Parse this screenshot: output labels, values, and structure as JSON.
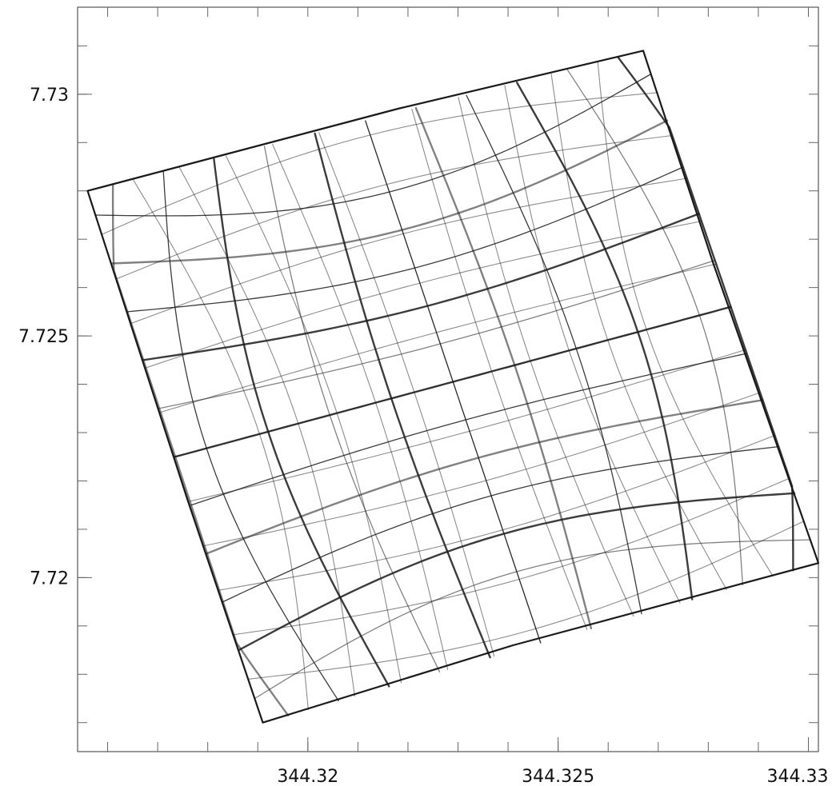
{
  "chart_data": {
    "type": "line",
    "title": "",
    "xlabel": "",
    "ylabel": "",
    "xlim": [
      344.3154,
      344.3302
    ],
    "ylim": [
      7.7164,
      7.7318
    ],
    "x_ticks": [
      {
        "value": 344.32,
        "label": "344.32"
      },
      {
        "value": 344.325,
        "label": "344.325"
      },
      {
        "value": 344.33,
        "label": "344.33"
      }
    ],
    "y_ticks": [
      {
        "value": 7.73,
        "label": "7.73"
      },
      {
        "value": 7.725,
        "label": "7.725"
      },
      {
        "value": 7.72,
        "label": "7.72"
      }
    ],
    "x_minor_step": 0.001,
    "y_minor_step": 0.001,
    "grid": false,
    "legend": "none",
    "line_color": "#1a1a1a",
    "series": [
      {
        "description_free": true,
        "points": [
          {
            "x": 344.3156,
            "y": 7.728
          },
          {
            "x": 344.3218,
            "y": 7.7297
          },
          {
            "x": 344.3267,
            "y": 7.7309
          },
          {
            "x": 344.3281,
            "y": 7.7265
          },
          {
            "x": 344.3302,
            "y": 7.7203
          },
          {
            "x": 344.3241,
            "y": 7.7186
          },
          {
            "x": 344.3191,
            "y": 7.717
          },
          {
            "x": 344.3176,
            "y": 7.7216
          },
          {
            "x": 344.3156,
            "y": 7.728
          }
        ]
      }
    ],
    "curve_family": {
      "center": [
        344.3229,
        7.7239
      ],
      "corners": [
        {
          "x": 344.3156,
          "y": 7.728
        },
        {
          "x": 344.3267,
          "y": 7.7309
        },
        {
          "x": 344.3302,
          "y": 7.7203
        },
        {
          "x": 344.3191,
          "y": 7.717
        }
      ],
      "family_a_count": 11,
      "family_b_count": 11
    }
  }
}
